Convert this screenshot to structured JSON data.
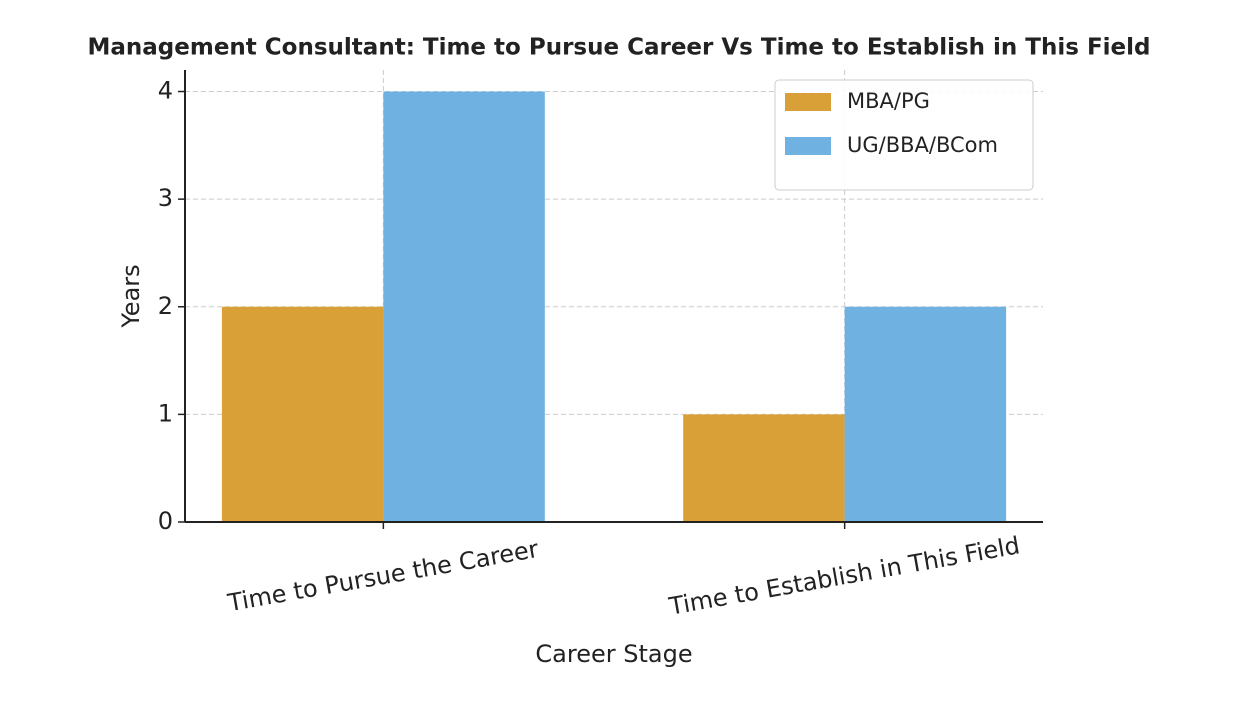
{
  "chart_data": {
    "type": "bar",
    "title": "Management Consultant: Time to Pursue Career Vs Time to Establish in This Field",
    "x_label": "Career Stage",
    "y_label": "Years",
    "categories": [
      "Time to Pursue the Career",
      "Time to Establish in This Field"
    ],
    "series": [
      {
        "name": "MBA/PG",
        "color": "#daa038",
        "values": [
          2,
          1
        ]
      },
      {
        "name": "UG/BBA/BCom",
        "color": "#6fb2e2",
        "values": [
          4,
          2
        ]
      }
    ],
    "ylim": [
      0,
      4.2
    ],
    "yticks": [
      0,
      1,
      2,
      3,
      4
    ],
    "grid": true,
    "legend": "upper-right"
  }
}
